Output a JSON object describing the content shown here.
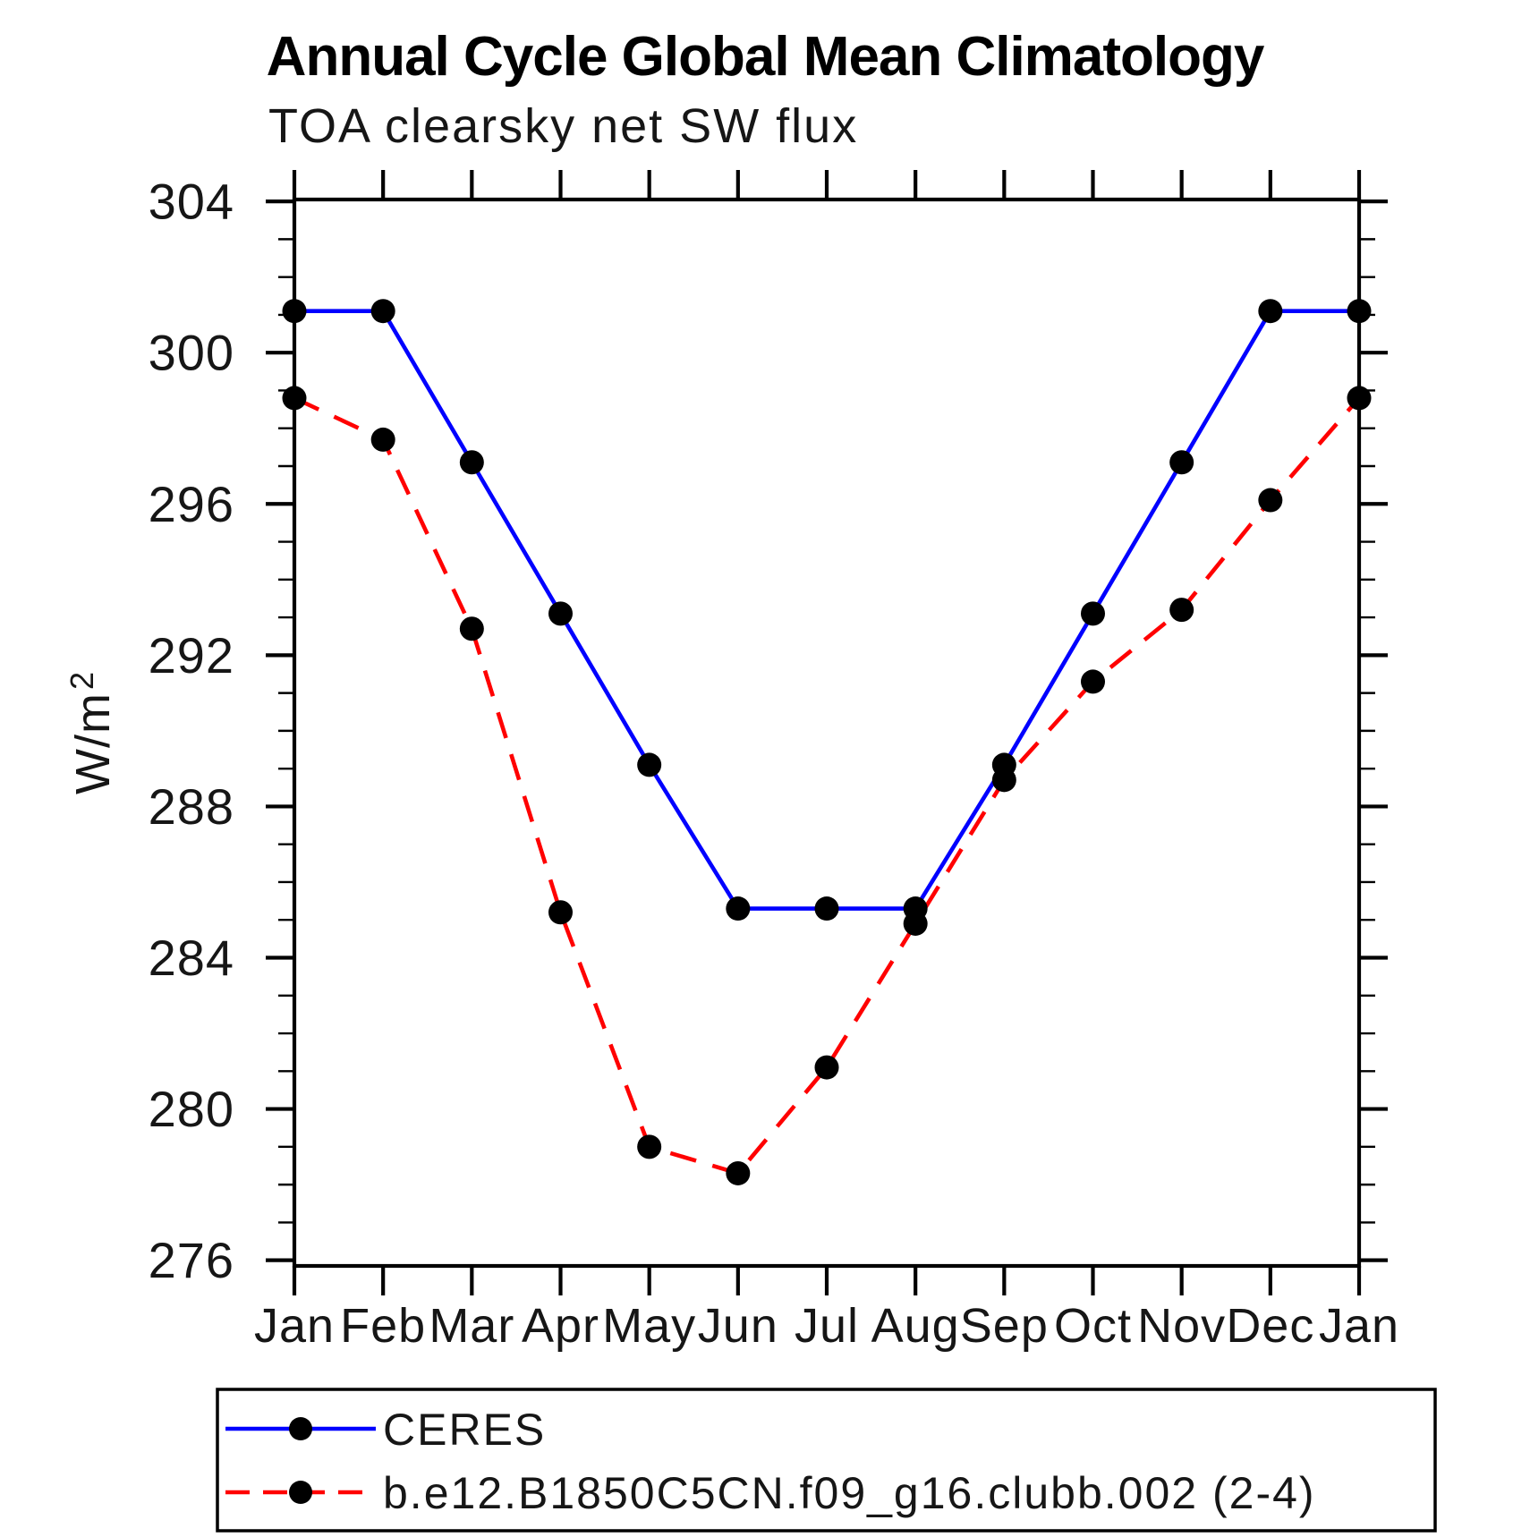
{
  "chart_data": {
    "type": "line",
    "title": "Annual Cycle Global Mean Climatology",
    "subtitle": "TOA clearsky net SW flux",
    "ylabel": "W/m²",
    "ylabel_base": "W/m",
    "ylabel_sup": "2",
    "categories": [
      "Jan",
      "Feb",
      "Mar",
      "Apr",
      "May",
      "Jun",
      "Jul",
      "Aug",
      "Sep",
      "Oct",
      "Nov",
      "Dec",
      "Jan"
    ],
    "series": [
      {
        "name": "CERES",
        "color": "#0000ff",
        "line_style": "solid",
        "marker": "filled-circle",
        "marker_color": "#000000",
        "values": [
          301.1,
          301.1,
          297.1,
          293.1,
          289.1,
          285.3,
          285.3,
          285.3,
          289.1,
          293.1,
          297.1,
          301.1,
          301.1
        ]
      },
      {
        "name": "b.e12.B1850C5CN.f09_g16.clubb.002 (2-4)",
        "color": "#ff0000",
        "line_style": "dashed",
        "marker": "filled-circle",
        "marker_color": "#000000",
        "values": [
          298.8,
          297.7,
          292.7,
          285.2,
          279.0,
          278.3,
          281.1,
          284.9,
          288.7,
          291.3,
          293.2,
          296.1,
          298.8
        ]
      }
    ],
    "ylim": [
      275.85,
      304.05
    ],
    "y_major_ticks": [
      276,
      280,
      284,
      288,
      292,
      296,
      300,
      304
    ],
    "y_minor_step": 1,
    "grid": false,
    "legend_position": "bottom-left-box",
    "axis_color": "#000000",
    "background_color": "#ffffff"
  }
}
